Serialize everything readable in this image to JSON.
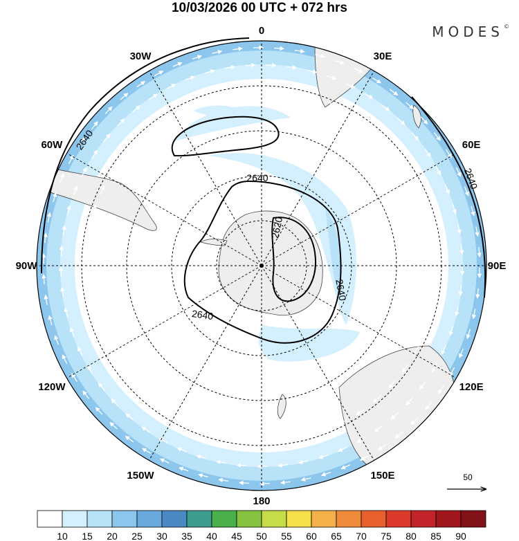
{
  "header": {
    "title": "10/03/2026  00 UTC  + 072 hrs",
    "brand": "MODES",
    "brand_mark": "©"
  },
  "map": {
    "projection": "south-polar-stereographic",
    "longitude_labels": [
      {
        "lon": 0,
        "text": "0"
      },
      {
        "lon": 30,
        "text": "30E"
      },
      {
        "lon": 60,
        "text": "60E"
      },
      {
        "lon": 90,
        "text": "90E"
      },
      {
        "lon": 120,
        "text": "120E"
      },
      {
        "lon": 150,
        "text": "150E"
      },
      {
        "lon": 180,
        "text": "180"
      },
      {
        "lon": -150,
        "text": "150W"
      },
      {
        "lon": -120,
        "text": "120W"
      },
      {
        "lon": -90,
        "text": "90W"
      },
      {
        "lon": -60,
        "text": "60W"
      },
      {
        "lon": -30,
        "text": "30W"
      }
    ],
    "contour_labels": [
      {
        "value": "2640",
        "place": "outer-west"
      },
      {
        "value": "2640",
        "place": "outer-east"
      },
      {
        "value": "2640",
        "place": "inner-north"
      },
      {
        "value": "2640",
        "place": "inner-south"
      },
      {
        "value": "2640",
        "place": "inner-east"
      },
      {
        "value": "2620",
        "place": "pole"
      }
    ],
    "reference_vector": {
      "label": "50"
    }
  },
  "colorbar": {
    "ticks": [
      "10",
      "15",
      "20",
      "25",
      "30",
      "35",
      "40",
      "45",
      "50",
      "55",
      "60",
      "65",
      "70",
      "75",
      "80",
      "85",
      "90"
    ],
    "colors": [
      "#ffffff",
      "#d4effd",
      "#b8e2f8",
      "#8cc6ec",
      "#68a9de",
      "#4b89c5",
      "#3e9e8e",
      "#4ab04a",
      "#86c440",
      "#c6dc48",
      "#f5e04a",
      "#f4b14a",
      "#ee8a3a",
      "#e8602e",
      "#dc3a2a",
      "#c2242a",
      "#a0161c",
      "#821218"
    ]
  }
}
